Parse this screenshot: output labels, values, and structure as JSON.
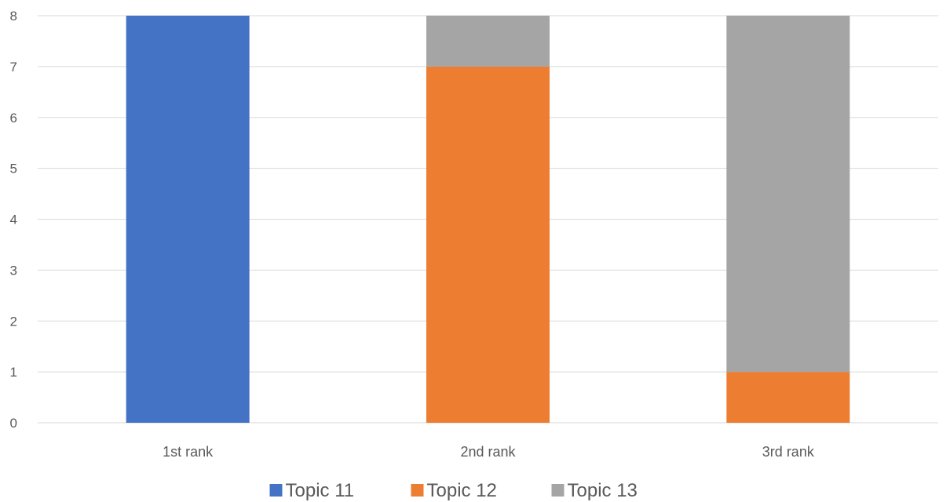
{
  "chart_data": {
    "type": "bar",
    "stacked": true,
    "categories": [
      "1st rank",
      "2nd rank",
      "3rd rank"
    ],
    "series": [
      {
        "name": "Topic 11",
        "color": "#4472C4",
        "values": [
          8,
          0,
          0
        ]
      },
      {
        "name": "Topic 12",
        "color": "#ED7D31",
        "values": [
          0,
          7,
          1
        ]
      },
      {
        "name": "Topic 13",
        "color": "#A5A5A5",
        "values": [
          0,
          1,
          7
        ]
      }
    ],
    "ylim": [
      0,
      8
    ],
    "yticks": [
      "0",
      "1",
      "2",
      "3",
      "4",
      "5",
      "6",
      "7",
      "8"
    ],
    "grid": true,
    "legend_position": "bottom"
  }
}
